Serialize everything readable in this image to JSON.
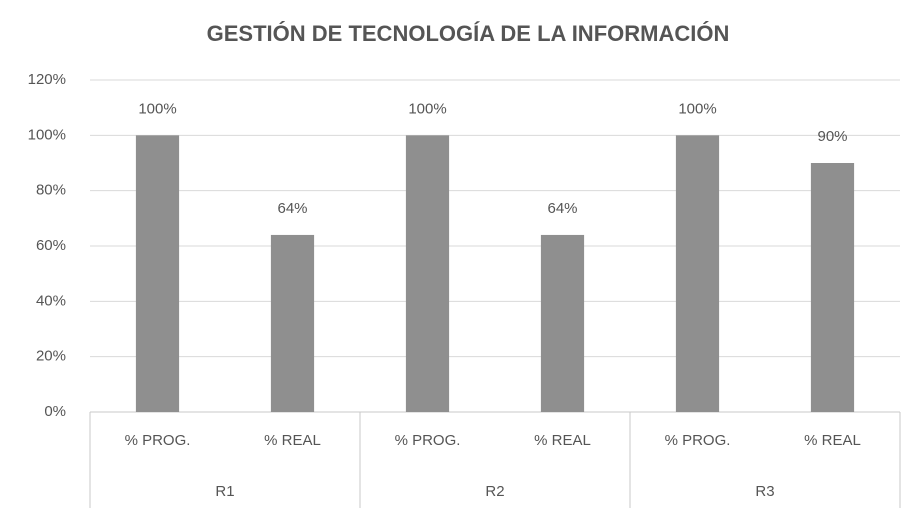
{
  "chart_data": {
    "type": "bar",
    "title": "GESTIÓN DE TECNOLOGÍA DE LA INFORMACIÓN",
    "categories": [
      "% PROG.",
      "% REAL",
      "% PROG.",
      "% REAL",
      "% PROG.",
      "% REAL"
    ],
    "group_labels": [
      "R1",
      "R2",
      "R3"
    ],
    "values": [
      100,
      64,
      100,
      64,
      100,
      90
    ],
    "value_labels": [
      "100%",
      "64%",
      "100%",
      "64%",
      "100%",
      "90%"
    ],
    "color": "#8f8f8f",
    "ylim": [
      0,
      120
    ],
    "yticks": [
      {
        "value": 0,
        "label": "0%"
      },
      {
        "value": 20,
        "label": "20%"
      },
      {
        "value": 40,
        "label": "40%"
      },
      {
        "value": 60,
        "label": "60%"
      },
      {
        "value": 80,
        "label": "80%"
      },
      {
        "value": 100,
        "label": "100%"
      },
      {
        "value": 120,
        "label": "120%"
      }
    ],
    "grid": true
  }
}
